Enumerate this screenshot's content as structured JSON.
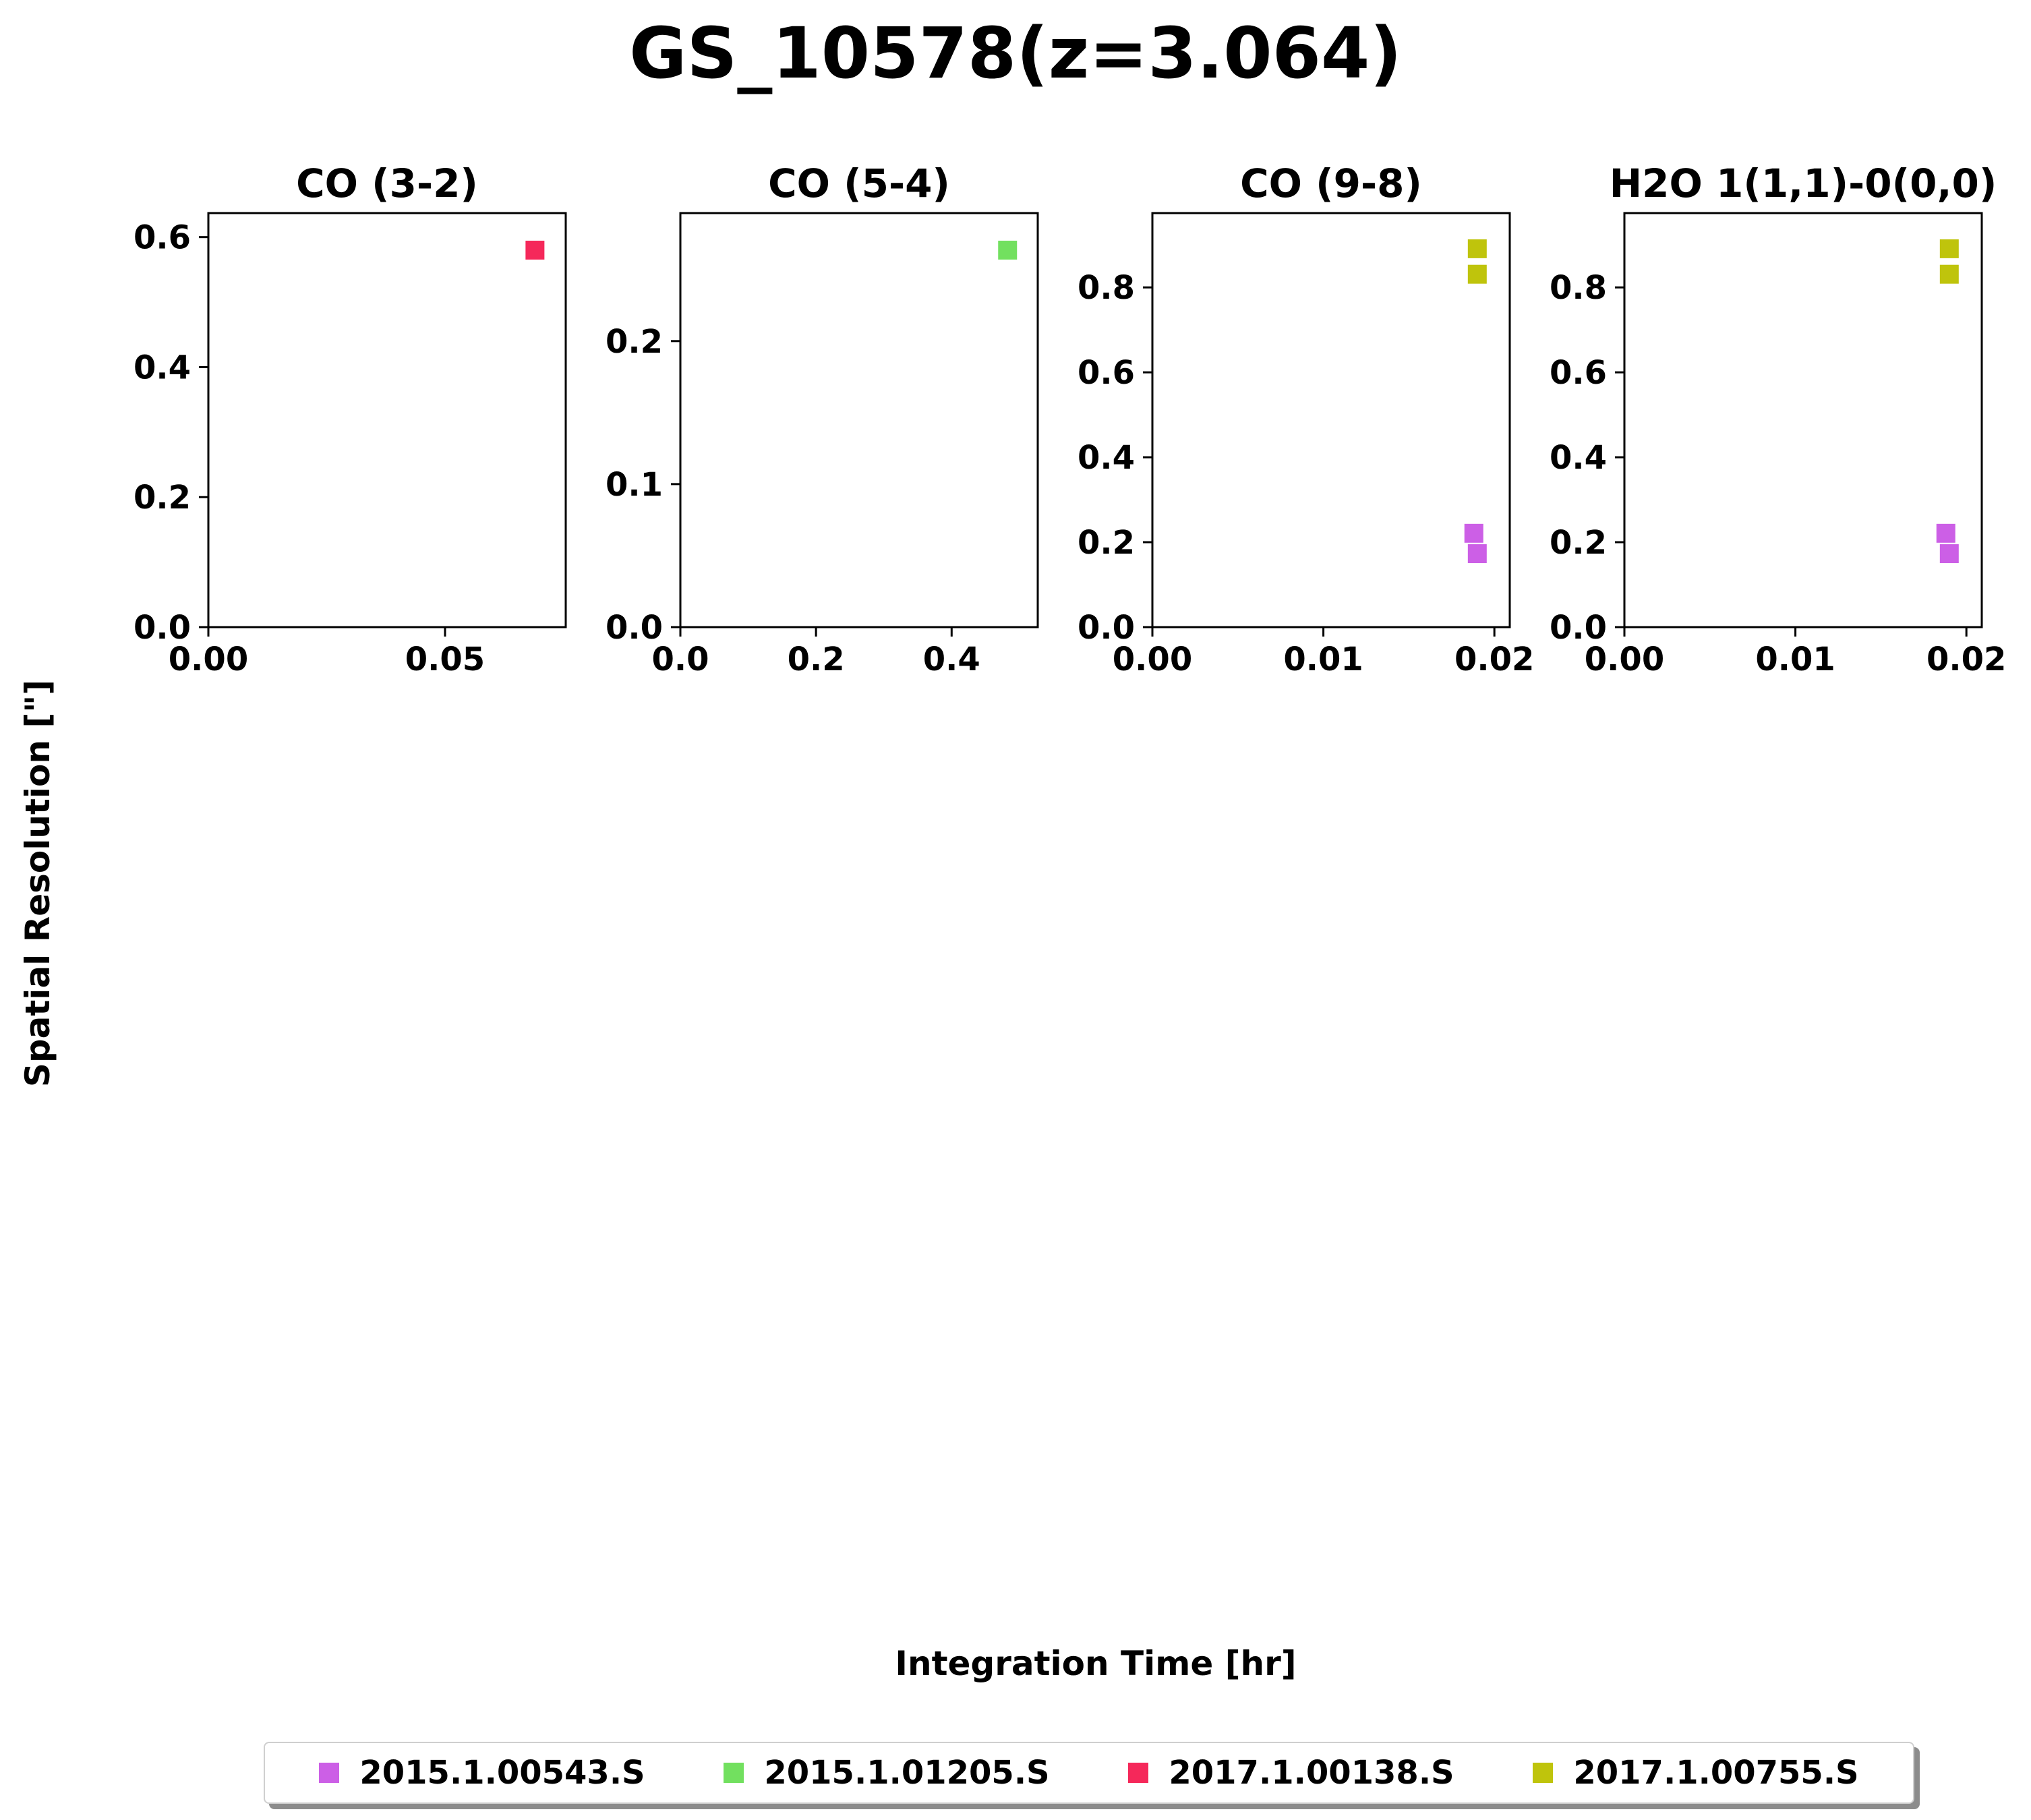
{
  "title": "GS_10578(z=3.064)",
  "ylabel": "Spatial Resolution [\"]",
  "xlabel": "Integration Time [hr]",
  "legend": {
    "placement": "bottom-center",
    "items": [
      {
        "label": "2015.1.00543.S",
        "color": "#cc5fe6"
      },
      {
        "label": "2015.1.01205.S",
        "color": "#72e05f"
      },
      {
        "label": "2017.1.00138.S",
        "color": "#f5285a"
      },
      {
        "label": "2017.1.00755.S",
        "color": "#bfc40c"
      }
    ]
  },
  "chart_data": [
    {
      "type": "scatter",
      "title": "CO (3-2)",
      "xlim": [
        0,
        0.0755
      ],
      "ylim": [
        0,
        0.637
      ],
      "xticks": [
        "0.00",
        "0.05"
      ],
      "xtick_values": [
        0,
        0.05
      ],
      "yticks": [
        "0.0",
        "0.2",
        "0.4",
        "0.6"
      ],
      "ytick_values": [
        0,
        0.2,
        0.4,
        0.6
      ],
      "series": [
        {
          "legend_ref": 2,
          "color": "#f5285a",
          "points": [
            [
              0.069,
              0.58
            ]
          ]
        }
      ]
    },
    {
      "type": "scatter",
      "title": "CO (5-4)",
      "xlim": [
        0,
        0.527
      ],
      "ylim": [
        0,
        0.2895
      ],
      "xticks": [
        "0.0",
        "0.2",
        "0.4"
      ],
      "xtick_values": [
        0,
        0.2,
        0.4
      ],
      "yticks": [
        "0.0",
        "0.1",
        "0.2"
      ],
      "ytick_values": [
        0,
        0.1,
        0.2
      ],
      "series": [
        {
          "legend_ref": 1,
          "color": "#72e05f",
          "points": [
            [
              0.4825,
              0.2636
            ]
          ]
        }
      ]
    },
    {
      "type": "scatter",
      "title": "CO (9-8)",
      "xlim": [
        0,
        0.0209
      ],
      "ylim": [
        0,
        0.975
      ],
      "xticks": [
        "0.00",
        "0.01",
        "0.02"
      ],
      "xtick_values": [
        0,
        0.01,
        0.02
      ],
      "yticks": [
        "0.0",
        "0.2",
        "0.4",
        "0.6",
        "0.8"
      ],
      "ytick_values": [
        0,
        0.2,
        0.4,
        0.6,
        0.8
      ],
      "series": [
        {
          "legend_ref": 0,
          "color": "#cc5fe6",
          "points": [
            [
              0.0188,
              0.221
            ],
            [
              0.019,
              0.173
            ]
          ]
        },
        {
          "legend_ref": 3,
          "color": "#bfc40c",
          "points": [
            [
              0.019,
              0.891
            ],
            [
              0.019,
              0.831
            ]
          ]
        }
      ]
    },
    {
      "type": "scatter",
      "title": "H2O 1(1,1)-0(0,0)",
      "xlim": [
        0,
        0.0209
      ],
      "ylim": [
        0,
        0.975
      ],
      "xticks": [
        "0.00",
        "0.01",
        "0.02"
      ],
      "xtick_values": [
        0,
        0.01,
        0.02
      ],
      "yticks": [
        "0.0",
        "0.2",
        "0.4",
        "0.6",
        "0.8"
      ],
      "ytick_values": [
        0,
        0.2,
        0.4,
        0.6,
        0.8
      ],
      "series": [
        {
          "legend_ref": 0,
          "color": "#cc5fe6",
          "points": [
            [
              0.0188,
              0.221
            ],
            [
              0.019,
              0.173
            ]
          ]
        },
        {
          "legend_ref": 3,
          "color": "#bfc40c",
          "points": [
            [
              0.019,
              0.891
            ],
            [
              0.019,
              0.831
            ]
          ]
        }
      ]
    }
  ]
}
